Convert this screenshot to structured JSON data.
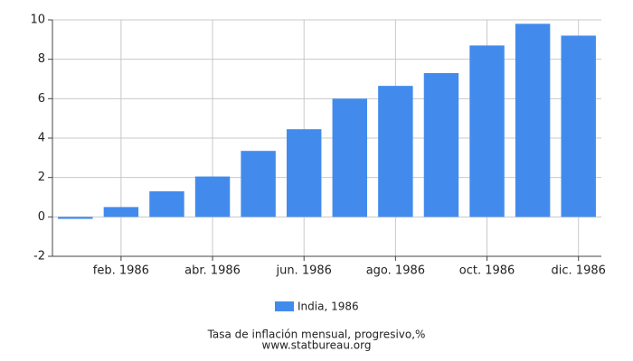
{
  "chart_data": {
    "type": "bar",
    "title": "Tasa de inflación mensual, progresivo,%",
    "source": "www.statbureau.org",
    "categories": [
      null,
      "feb. 1986",
      null,
      "abr. 1986",
      null,
      "jun. 1986",
      null,
      "ago. 1986",
      null,
      "oct. 1986",
      null,
      "dic. 1986"
    ],
    "series": [
      {
        "name": "India, 1986",
        "color": "#428bed",
        "values": [
          -0.1,
          0.5,
          1.3,
          2.05,
          3.35,
          4.45,
          6.0,
          6.65,
          7.3,
          8.7,
          9.8,
          9.2
        ]
      }
    ],
    "ylim": [
      -2,
      10
    ],
    "yticks": [
      -2,
      0,
      2,
      4,
      6,
      8,
      10
    ],
    "grid": true
  }
}
